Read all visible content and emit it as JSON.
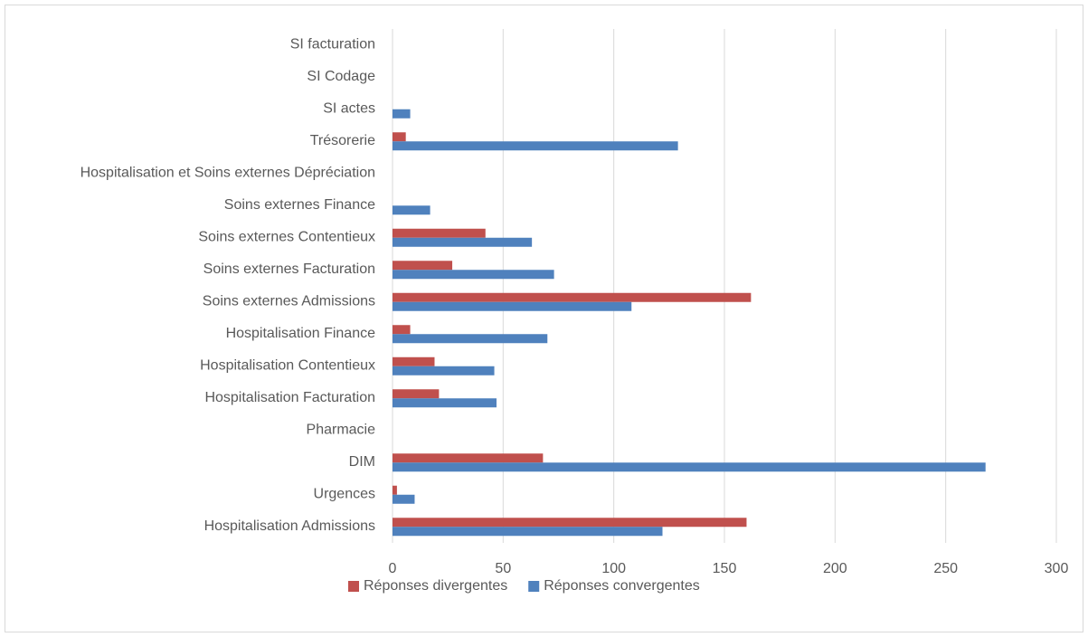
{
  "chart_data": {
    "type": "bar",
    "orientation": "horizontal",
    "title": "",
    "xlabel": "",
    "ylabel": "",
    "categories": [
      "Hospitalisation Admissions",
      "Urgences",
      "DIM",
      "Pharmacie",
      "Hospitalisation Facturation",
      "Hospitalisation Contentieux",
      "Hospitalisation Finance",
      "Soins externes Admissions",
      "Soins externes Facturation",
      "Soins externes Contentieux",
      "Soins externes Finance",
      "Hospitalisation et Soins externes Dépréciation",
      "Trésorerie",
      "SI actes",
      "SI Codage",
      "SI facturation"
    ],
    "series": [
      {
        "name": "Réponses divergentes",
        "color": "#c0504d",
        "values": [
          160,
          2,
          68,
          0,
          21,
          19,
          8,
          162,
          27,
          42,
          0,
          0,
          6,
          0,
          0,
          0
        ]
      },
      {
        "name": "Réponses convergentes",
        "color": "#4f81bd",
        "values": [
          122,
          10,
          268,
          0,
          47,
          46,
          70,
          108,
          73,
          63,
          17,
          0,
          129,
          8,
          0,
          0
        ]
      }
    ],
    "xlim": [
      0,
      300
    ],
    "xticks": [
      0,
      50,
      100,
      150,
      200,
      250,
      300
    ],
    "grid": "vertical",
    "legend_position": "bottom"
  }
}
